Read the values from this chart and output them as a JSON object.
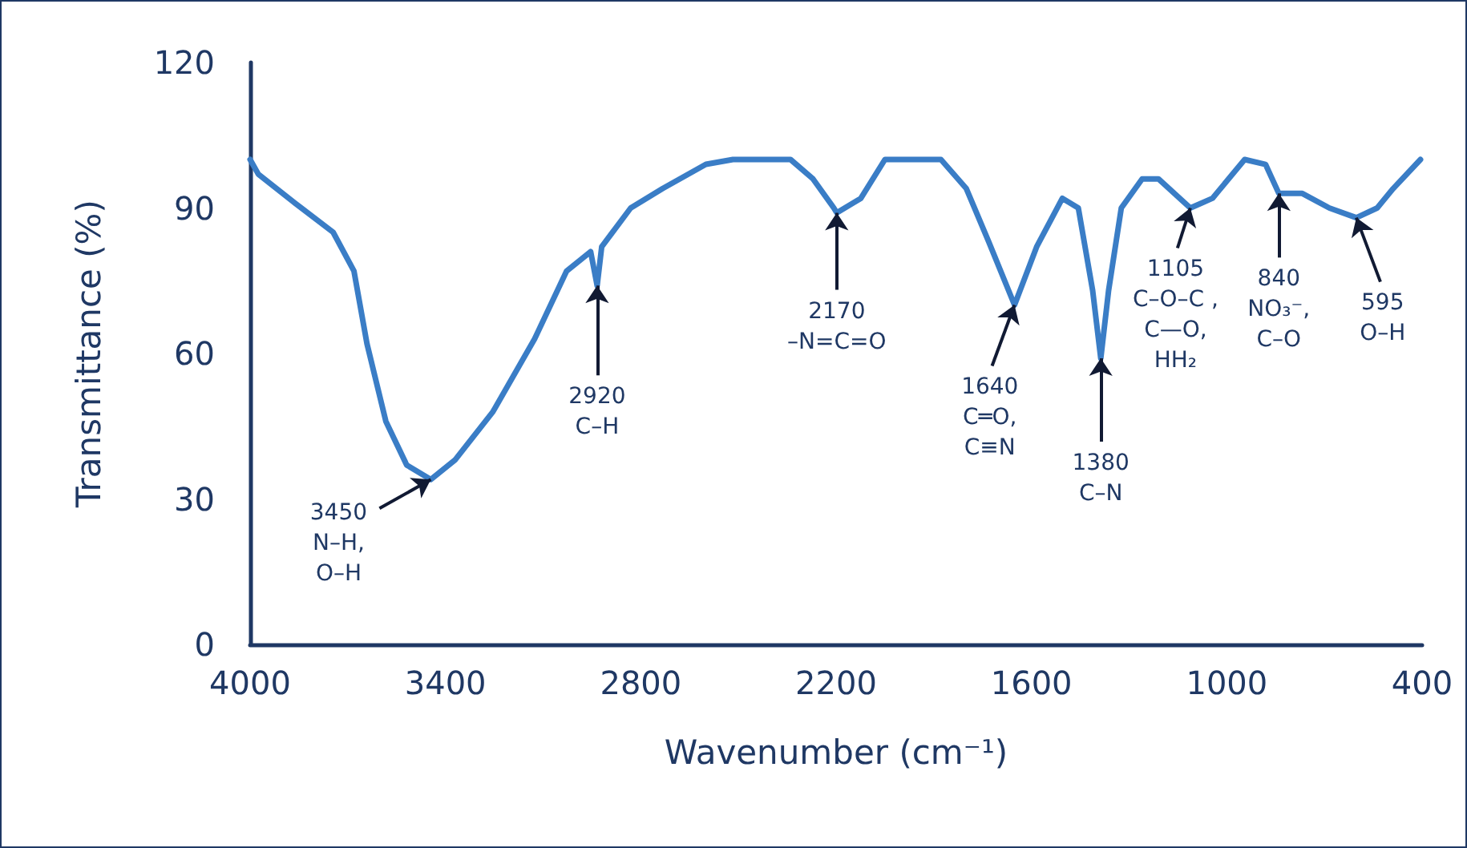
{
  "chart_data": {
    "type": "line",
    "xlabel": "Wavenumber (cm⁻¹)",
    "ylabel": "Transmittance (%)",
    "xlim": [
      4000,
      400
    ],
    "ylim": [
      0,
      120
    ],
    "xticks": [
      4000,
      3400,
      2800,
      2200,
      1600,
      1000,
      400
    ],
    "yticks": [
      0,
      30,
      60,
      90,
      120
    ],
    "grid": false,
    "marker": "none",
    "line_style": "solid",
    "series": [
      {
        "color": "#3a7dc6",
        "x": [
          4000,
          3975,
          3862,
          3745,
          3681,
          3641,
          3583,
          3519,
          3445,
          3371,
          3254,
          3126,
          3028,
          2954,
          2934,
          2920,
          2831,
          2733,
          2600,
          2517,
          2340,
          2271,
          2207,
          2198,
          2124,
          2050,
          1878,
          1800,
          1731,
          1652,
          1584,
          1505,
          1456,
          1412,
          1387,
          1363,
          1324,
          1260,
          1210,
          1112,
          1044,
          945,
          881,
          840,
          832,
          768,
          685,
          602,
          538,
          489,
          405
        ],
        "values": [
          100,
          97,
          91,
          85,
          77,
          62,
          46,
          37,
          34,
          38,
          48,
          63,
          77,
          81,
          74,
          82,
          90,
          94,
          99,
          100,
          100,
          96,
          90,
          89,
          92,
          100,
          100,
          94,
          83,
          70,
          82,
          92,
          90,
          73,
          59,
          73,
          90,
          96,
          96,
          90,
          92,
          100,
          99,
          93,
          93,
          93,
          90,
          88,
          90,
          94,
          100
        ]
      }
    ],
    "annotations": [
      {
        "text": "3450\nN–H,\nO–H",
        "x": 3445,
        "y": 34
      },
      {
        "text": "2920\nC–H",
        "x": 2934,
        "y": 74
      },
      {
        "text": "2170\n–N=C=O",
        "x": 2198,
        "y": 89
      },
      {
        "text": "1640\nC═O,\nC≡N",
        "x": 1652,
        "y": 70
      },
      {
        "text": "1380\nC–N",
        "x": 1387,
        "y": 59
      },
      {
        "text": "1105\nC–O–C ,\nC—O,\nHH₂",
        "x": 1112,
        "y": 90
      },
      {
        "text": "840\nNO₃⁻,\nC–O",
        "x": 840,
        "y": 93
      },
      {
        "text": "595\nO–H",
        "x": 602,
        "y": 88
      }
    ]
  }
}
